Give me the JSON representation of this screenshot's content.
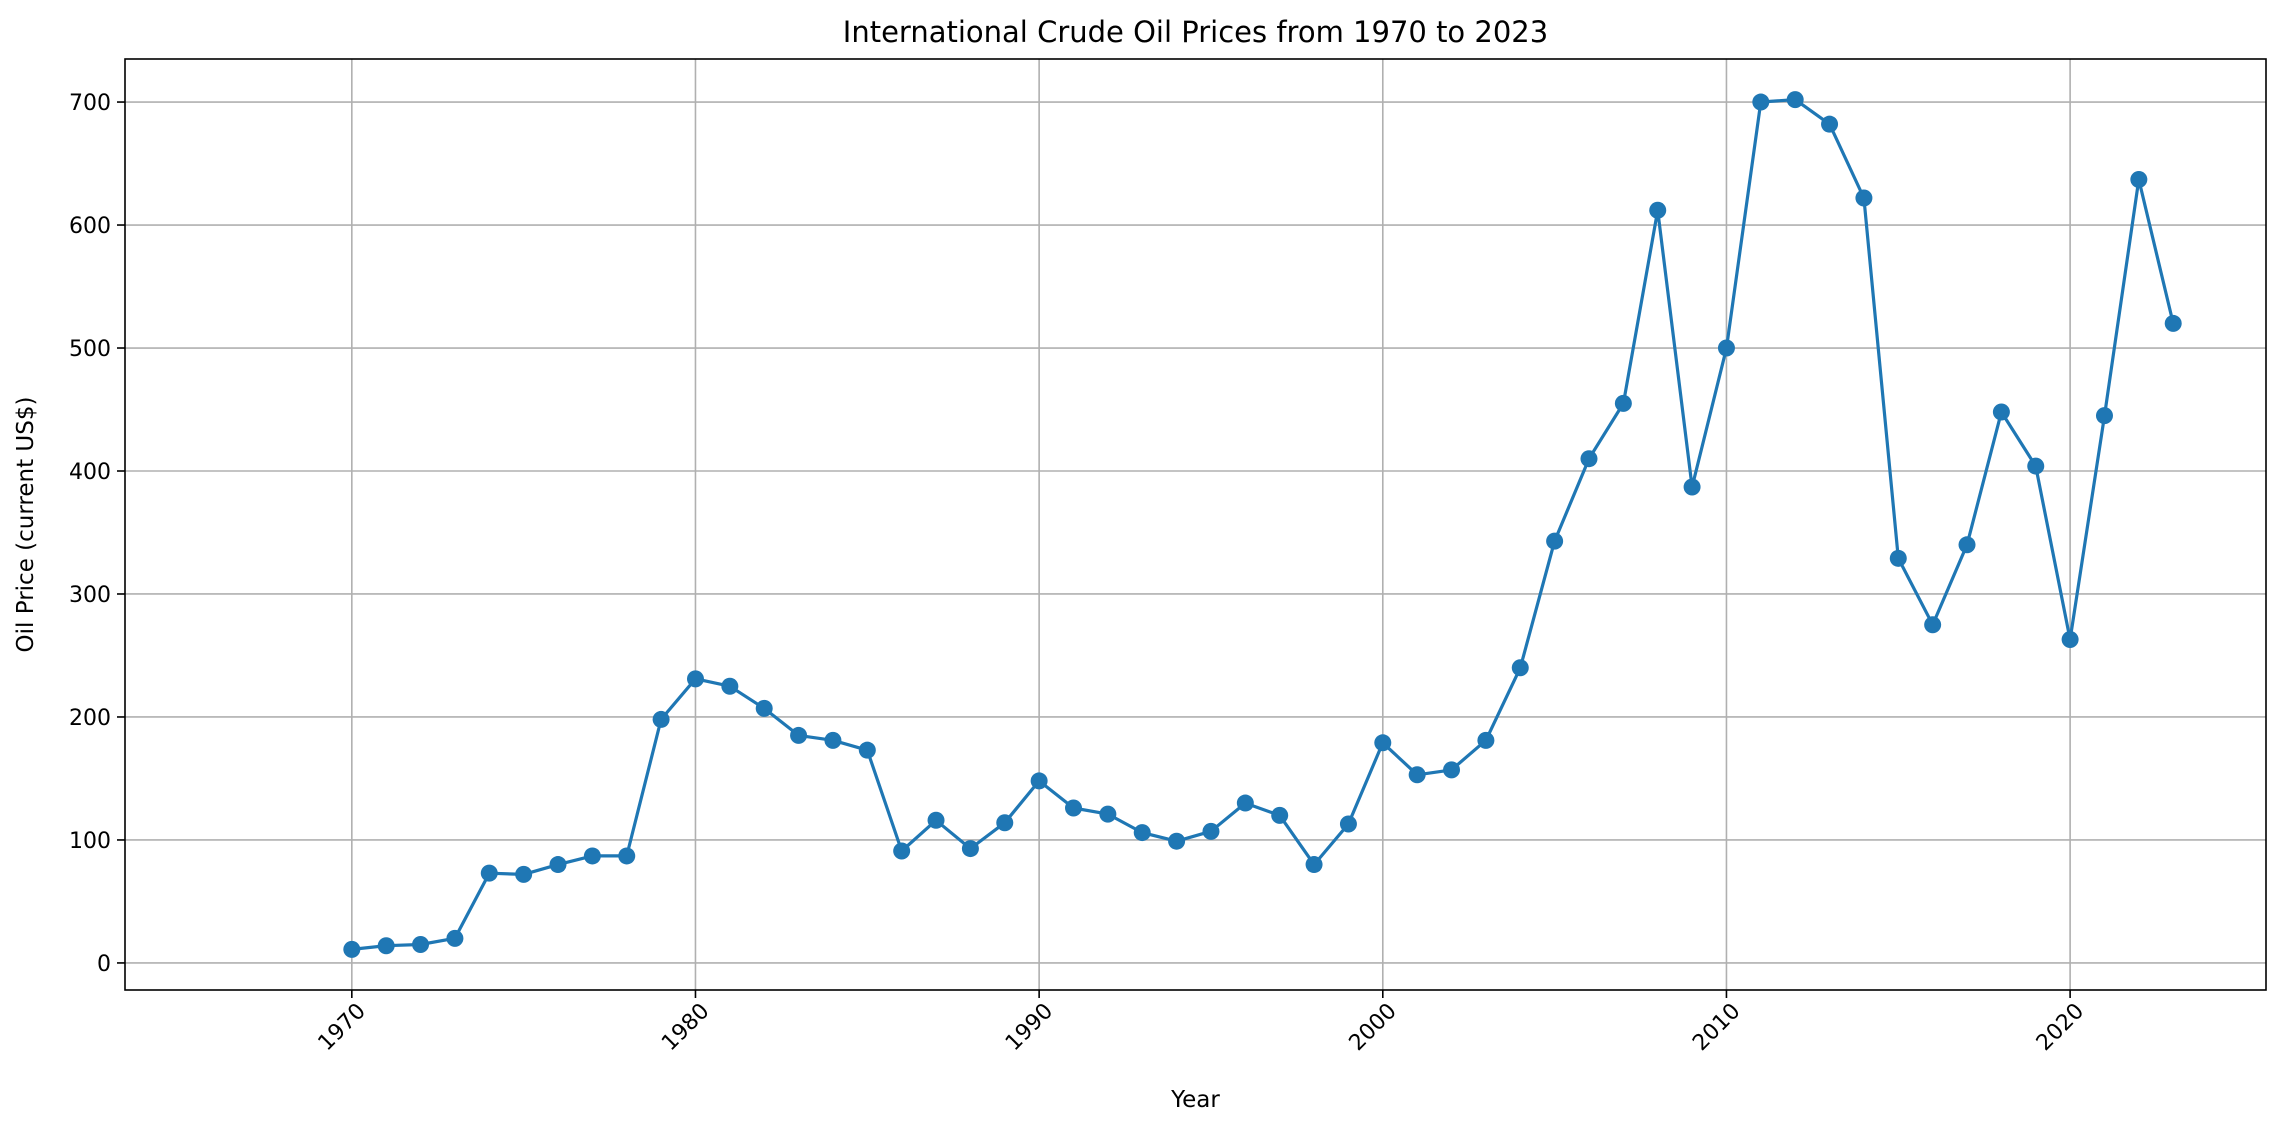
{
  "chart_data": {
    "type": "line",
    "title": "International Crude Oil Prices from 1970 to 2023",
    "xlabel": "Year",
    "ylabel": "Oil Price (current US$)",
    "xlim": [
      1963.4,
      2025.7
    ],
    "ylim": [
      -22,
      735
    ],
    "xticks": [
      1970,
      1980,
      1990,
      2000,
      2010,
      2020
    ],
    "yticks": [
      0,
      100,
      200,
      300,
      400,
      500,
      600,
      700
    ],
    "grid": true,
    "marker": "circle",
    "series_color": "#1f77b4",
    "grid_color": "#b0b0b0",
    "x": [
      1970,
      1971,
      1972,
      1973,
      1974,
      1975,
      1976,
      1977,
      1978,
      1979,
      1980,
      1981,
      1982,
      1983,
      1984,
      1985,
      1986,
      1987,
      1988,
      1989,
      1990,
      1991,
      1992,
      1993,
      1994,
      1995,
      1996,
      1997,
      1998,
      1999,
      2000,
      2001,
      2002,
      2003,
      2004,
      2005,
      2006,
      2007,
      2008,
      2009,
      2010,
      2011,
      2012,
      2013,
      2014,
      2015,
      2016,
      2017,
      2018,
      2019,
      2020,
      2021,
      2022,
      2023
    ],
    "values": [
      11,
      14,
      15,
      20,
      73,
      72,
      80,
      87,
      87,
      198,
      231,
      225,
      207,
      185,
      181,
      173,
      91,
      116,
      93,
      114,
      148,
      126,
      121,
      106,
      99,
      107,
      130,
      120,
      80,
      113,
      179,
      153,
      157,
      181,
      240,
      343,
      410,
      455,
      612,
      387,
      500,
      700,
      702,
      682,
      622,
      329,
      275,
      340,
      448,
      404,
      263,
      445,
      637,
      520
    ]
  }
}
